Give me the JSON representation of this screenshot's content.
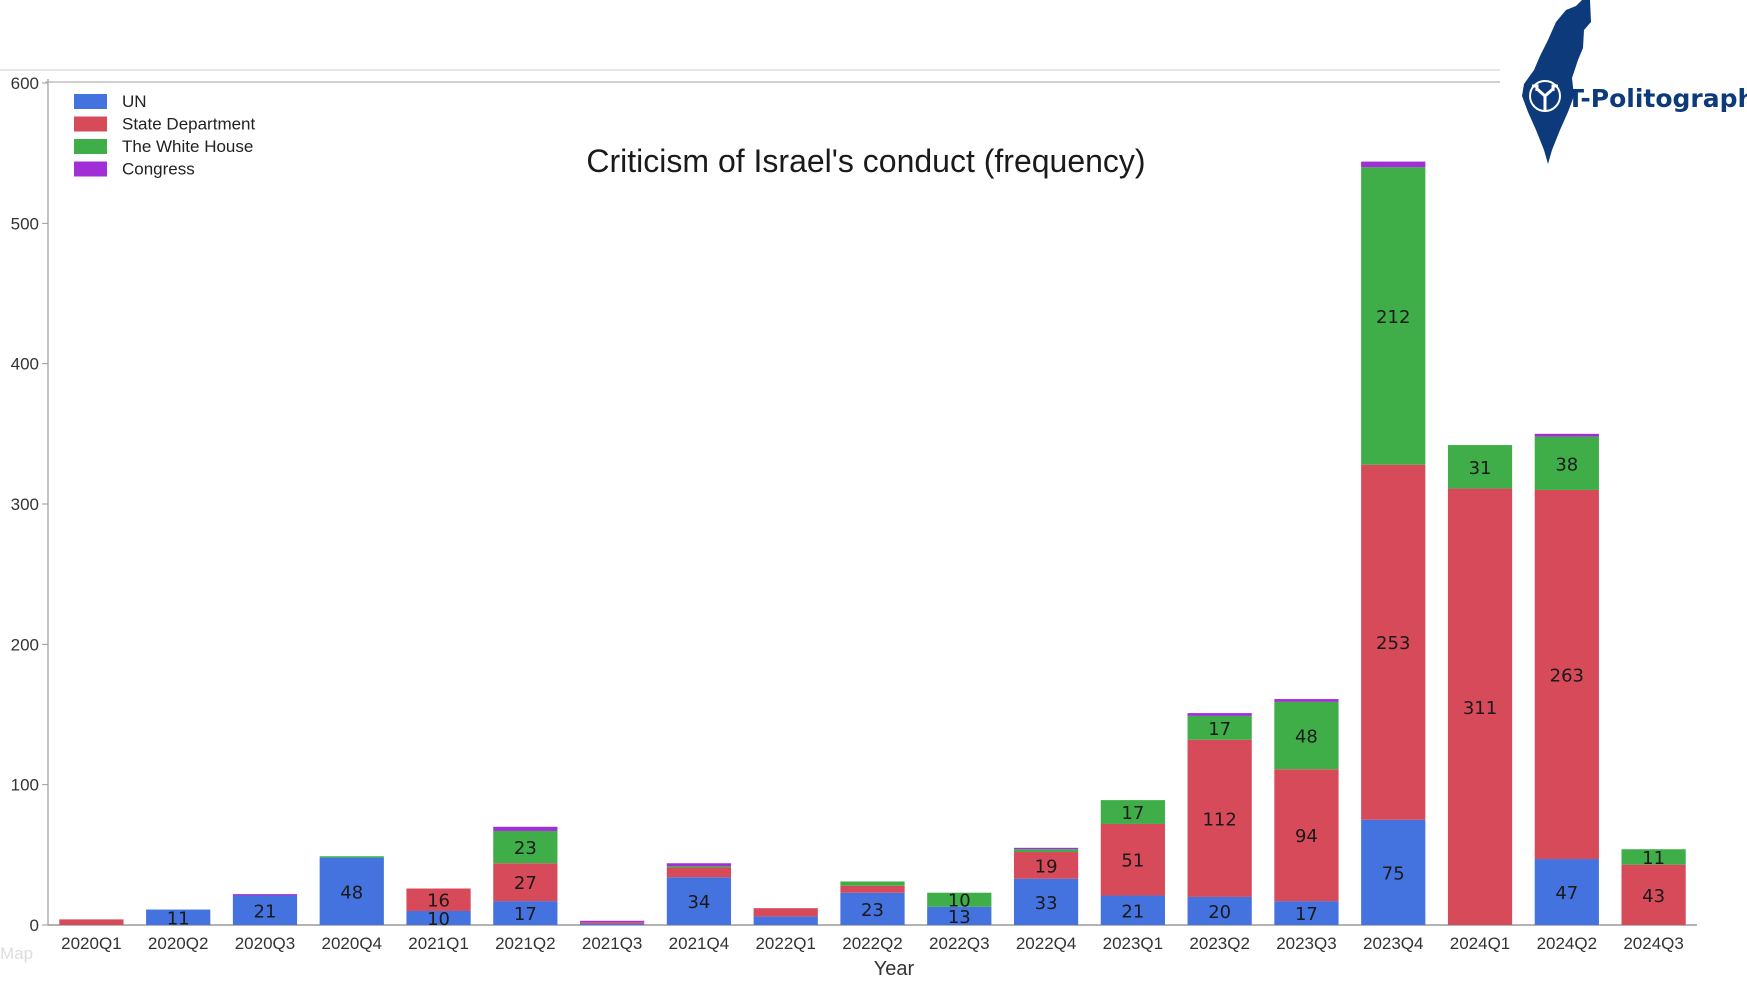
{
  "chart_data": {
    "type": "bar",
    "stacked": true,
    "title": "Criticism of Israel's conduct (frequency)",
    "xlabel": "Year",
    "ylabel": "",
    "ylim": [
      0,
      600
    ],
    "yticks": [
      0,
      100,
      200,
      300,
      400,
      500,
      600
    ],
    "legend_position": "top-left",
    "categories": [
      "2020Q1",
      "2020Q2",
      "2020Q3",
      "2020Q4",
      "2021Q1",
      "2021Q2",
      "2021Q3",
      "2021Q4",
      "2022Q1",
      "2022Q2",
      "2022Q3",
      "2022Q4",
      "2023Q1",
      "2023Q2",
      "2023Q3",
      "2023Q4",
      "2024Q1",
      "2024Q2",
      "2024Q3"
    ],
    "series": [
      {
        "name": "UN",
        "color": "#4472de",
        "values": [
          0,
          11,
          21,
          48,
          10,
          17,
          1,
          34,
          6,
          23,
          13,
          33,
          21,
          20,
          17,
          75,
          0,
          47,
          0
        ],
        "labels": [
          "",
          "11",
          "21",
          "48",
          "10",
          "17",
          "",
          "34",
          "",
          "23",
          "13",
          "33",
          "21",
          "20",
          "17",
          "75",
          "",
          "47",
          ""
        ]
      },
      {
        "name": "State Department",
        "color": "#d64a5a",
        "values": [
          4,
          0,
          0,
          0,
          16,
          27,
          1,
          7,
          6,
          5,
          0,
          19,
          51,
          112,
          94,
          253,
          311,
          263,
          43
        ],
        "labels": [
          "",
          "",
          "",
          "",
          "16",
          "27",
          "",
          "",
          "",
          "",
          "",
          "19",
          "51",
          "112",
          "94",
          "253",
          "311",
          "263",
          "43"
        ]
      },
      {
        "name": "The White House",
        "color": "#3fae48",
        "values": [
          0,
          0,
          0,
          1,
          0,
          23,
          0,
          1,
          0,
          3,
          10,
          2,
          17,
          17,
          48,
          212,
          31,
          38,
          11
        ],
        "labels": [
          "",
          "",
          "",
          "",
          "",
          "23",
          "",
          "",
          "",
          "",
          "10",
          "",
          "17",
          "17",
          "48",
          "212",
          "31",
          "38",
          "11"
        ]
      },
      {
        "name": "Congress",
        "color": "#a12fd8",
        "values": [
          0,
          0,
          1,
          0,
          0,
          3,
          1,
          2,
          0,
          0,
          0,
          1,
          0,
          2,
          2,
          4,
          0,
          2,
          0
        ],
        "labels": [
          "",
          "",
          "",
          "",
          "",
          "",
          "",
          "",
          "",
          "",
          "",
          "",
          "",
          "",
          "",
          "",
          "",
          "",
          ""
        ]
      }
    ]
  },
  "logo": {
    "text": "T-Politography",
    "color": "#0d3a7a"
  },
  "watermark": {
    "text": "Map"
  }
}
